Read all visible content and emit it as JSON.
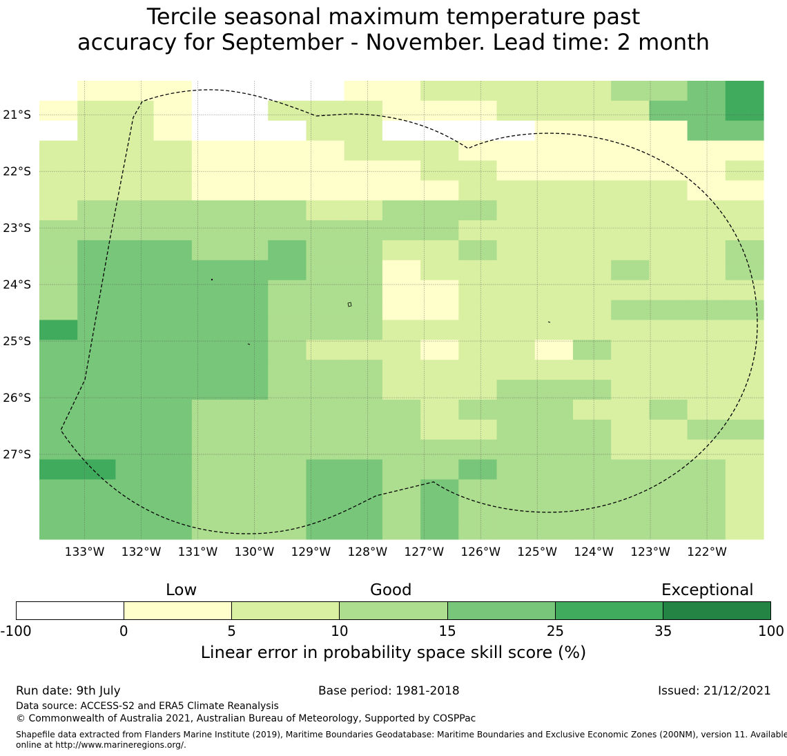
{
  "title": {
    "line1": "Tercile seasonal maximum temperature past",
    "line2": "accuracy for September - November. Lead time: 2 month"
  },
  "map": {
    "lat_labels": [
      "21°S",
      "22°S",
      "23°S",
      "24°S",
      "25°S",
      "26°S",
      "27°S"
    ],
    "lon_labels": [
      "133°W",
      "132°W",
      "131°W",
      "130°W",
      "129°W",
      "128°W",
      "127°W",
      "126°W",
      "125°W",
      "124°W",
      "123°W",
      "122°W"
    ],
    "lat_values": [
      -21,
      -22,
      -23,
      -24,
      -25,
      -26,
      -27
    ],
    "lon_values": [
      -133,
      -132,
      -131,
      -130,
      -129,
      -128,
      -127,
      -126,
      -125,
      -124,
      -123,
      -122
    ],
    "extent": {
      "lon_min": -133.8,
      "lon_max": -121.0,
      "lat_min": -28.5,
      "lat_max": -20.4
    },
    "grid_resolution_deg": 0.8333,
    "skill_grid": [
      "0111000011222223345",
      "1221002221112222445",
      "0221000220000111144",
      "2222111122211111111",
      "2222111111221111112",
      "2222111111122222211",
      "2333333223332222222",
      "3333333333322222222",
      "3444334332232222223",
      "3444444331222223223",
      "3444443331122222222",
      "3444443331122223333",
      "5444443332222222222",
      "4444443222122132222",
      "4444443332222222222",
      "4444443332223332222",
      "4444333333233322322",
      "4444333333223332233",
      "4444333333333332222",
      "5544333443343333332",
      "4444333443433333332",
      "4444333443433333332",
      "4444333443433333332"
    ],
    "gridlines": true,
    "boundary_style": "dashed",
    "colors": {
      "bin0": "#ffffff",
      "bin1": "#ffffcc",
      "bin2": "#d9f0a3",
      "bin3": "#addd8e",
      "bin4": "#78c679",
      "bin5": "#41ab5d",
      "bin6": "#238443"
    }
  },
  "colorbar": {
    "categories": [
      "Low",
      "Good",
      "Exceptional"
    ],
    "ticks": [
      "-100",
      "0",
      "5",
      "10",
      "15",
      "25",
      "35",
      "100"
    ],
    "bins": [
      {
        "from": -100,
        "to": 0,
        "color": "#ffffff"
      },
      {
        "from": 0,
        "to": 5,
        "color": "#ffffcc"
      },
      {
        "from": 5,
        "to": 10,
        "color": "#d9f0a3"
      },
      {
        "from": 10,
        "to": 15,
        "color": "#addd8e"
      },
      {
        "from": 15,
        "to": 25,
        "color": "#78c679"
      },
      {
        "from": 25,
        "to": 35,
        "color": "#41ab5d"
      },
      {
        "from": 35,
        "to": 100,
        "color": "#238443"
      }
    ],
    "label": "Linear error in probability space skill score (%)"
  },
  "footer": {
    "run_date": "Run date: 9th July",
    "base_period": "Base period: 1981-2018",
    "issued": "Issued: 21/12/2021",
    "data_source": "Data source: ACCESS-S2 and ERA5 Climate Reanalysis",
    "copyright": "© Commonwealth of Australia 2021, Australian Bureau of Meteorology, Supported by COSPPac",
    "shapefile_line1": "Shapefile data extracted from Flanders Marine Institute (2019), Maritime Boundaries Geodatabase: Maritime Boundaries and Exclusive Economic Zones (200NM), version 11. Available",
    "shapefile_line2": "online at http://www.marineregions.org/."
  }
}
